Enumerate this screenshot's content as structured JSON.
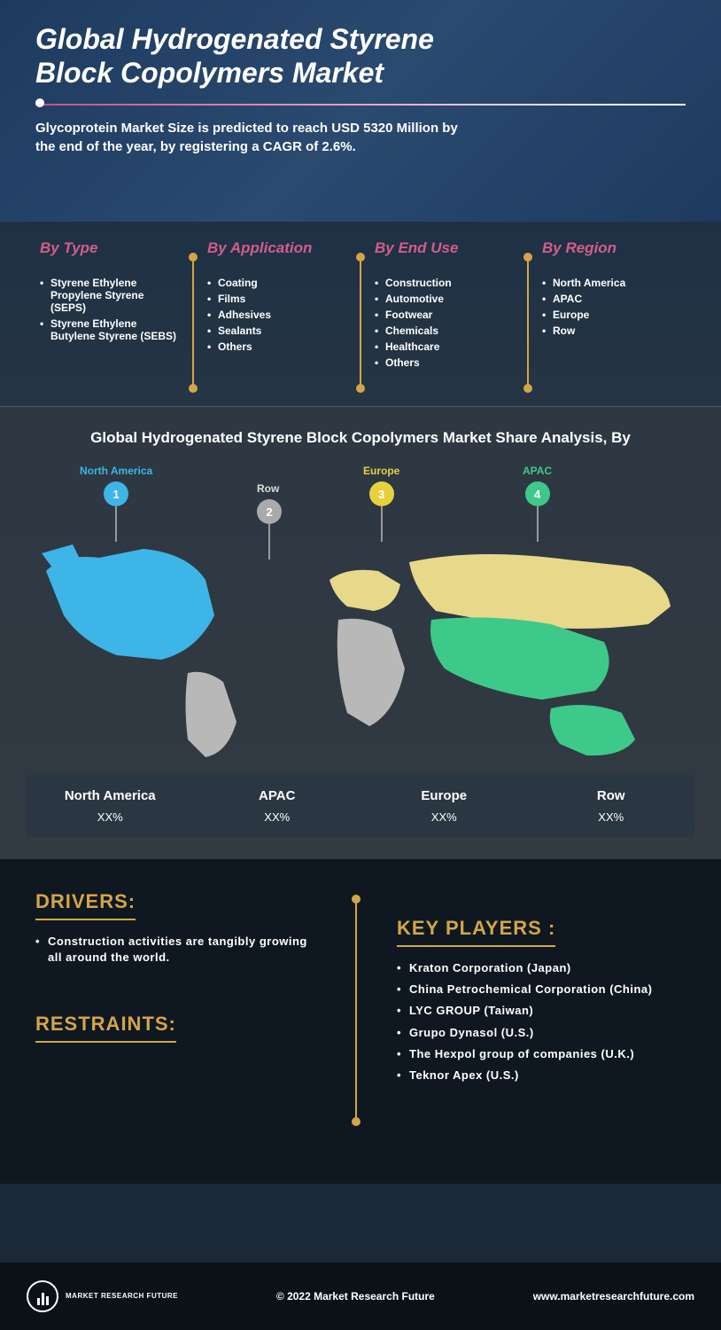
{
  "header": {
    "title": "Global Hydrogenated Styrene Block Copolymers Market",
    "subtitle": "Glycoprotein Market Size is predicted to reach USD 5320 Million by the end of the year, by registering a CAGR of 2.6%."
  },
  "segments": [
    {
      "title": "By Type",
      "items": [
        "Styrene Ethylene Propylene Styrene (SEPS)",
        "Styrene Ethylene Butylene Styrene (SEBS)"
      ]
    },
    {
      "title": "By Application",
      "items": [
        "Coating",
        "Films",
        "Adhesives",
        "Sealants",
        "Others"
      ]
    },
    {
      "title": "By End Use",
      "items": [
        "Construction",
        "Automotive",
        "Footwear",
        "Chemicals",
        "Healthcare",
        "Others"
      ]
    },
    {
      "title": "By Region",
      "items": [
        "North America",
        "APAC",
        "Europe",
        "Row"
      ]
    }
  ],
  "map": {
    "title": "Global Hydrogenated Styrene Block Copolymers Market Share Analysis, By",
    "regions": [
      {
        "name": "North America",
        "num": "1",
        "color": "#3db5e6"
      },
      {
        "name": "Row",
        "num": "2",
        "color": "#aaaaaa"
      },
      {
        "name": "Europe",
        "num": "3",
        "color": "#e6d03d"
      },
      {
        "name": "APAC",
        "num": "4",
        "color": "#3dc98a"
      }
    ],
    "shares": [
      {
        "label": "North America",
        "value": "XX%"
      },
      {
        "label": "APAC",
        "value": "XX%"
      },
      {
        "label": "Europe",
        "value": "XX%"
      },
      {
        "label": "Row",
        "value": "XX%"
      }
    ]
  },
  "drivers": {
    "title": "DRIVERS:",
    "items": [
      "Construction activities are tangibly growing all around the world."
    ]
  },
  "restraints": {
    "title": "RESTRAINTS:"
  },
  "keyplayers": {
    "title": "KEY PLAYERS :",
    "items": [
      "Kraton Corporation (Japan)",
      "China Petrochemical Corporation (China)",
      "LYC GROUP (Taiwan)",
      "Grupo Dynasol (U.S.)",
      "The Hexpol group of companies (U.K.)",
      "Teknor Apex (U.S.)"
    ]
  },
  "footer": {
    "logo": "MARKET RESEARCH FUTURE",
    "copyright": "© 2022 Market Research Future",
    "url": "www.marketresearchfuture.com"
  }
}
